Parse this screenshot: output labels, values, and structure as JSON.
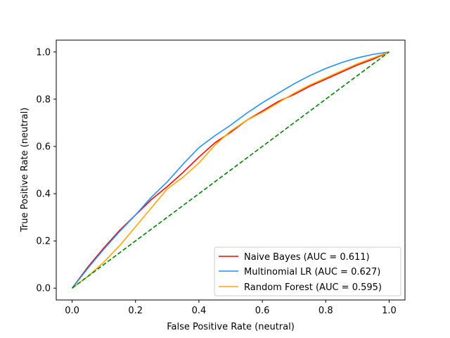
{
  "chart_data": {
    "type": "line",
    "title": "",
    "xlabel": "False Positive Rate (neutral)",
    "ylabel": "True Positive Rate (neutral)",
    "xlim": [
      -0.05,
      1.05
    ],
    "ylim": [
      -0.05,
      1.05
    ],
    "xticks": [
      "0.0",
      "0.2",
      "0.4",
      "0.6",
      "0.8",
      "1.0"
    ],
    "yticks": [
      "0.0",
      "0.2",
      "0.4",
      "0.6",
      "0.8",
      "1.0"
    ],
    "grid": false,
    "legend_position": "lower-right",
    "series": [
      {
        "name": "Naive Bayes (AUC =  0.611)",
        "color": "#ff0000",
        "x": [
          0,
          0.05,
          0.1,
          0.15,
          0.2,
          0.25,
          0.3,
          0.35,
          0.4,
          0.45,
          0.5,
          0.55,
          0.6,
          0.65,
          0.7,
          0.75,
          0.8,
          0.85,
          0.9,
          0.95,
          1.0
        ],
        "y": [
          0,
          0.09,
          0.17,
          0.245,
          0.31,
          0.375,
          0.43,
          0.49,
          0.555,
          0.615,
          0.66,
          0.71,
          0.75,
          0.79,
          0.82,
          0.855,
          0.885,
          0.915,
          0.945,
          0.97,
          1.0
        ]
      },
      {
        "name": "Multinomial LR (AUC =  0.627)",
        "color": "#1e90ff",
        "x": [
          0,
          0.05,
          0.1,
          0.15,
          0.2,
          0.25,
          0.3,
          0.35,
          0.4,
          0.45,
          0.5,
          0.55,
          0.6,
          0.65,
          0.7,
          0.75,
          0.8,
          0.85,
          0.9,
          0.95,
          1.0
        ],
        "y": [
          0,
          0.085,
          0.165,
          0.24,
          0.31,
          0.385,
          0.45,
          0.525,
          0.595,
          0.645,
          0.69,
          0.74,
          0.785,
          0.825,
          0.865,
          0.9,
          0.93,
          0.955,
          0.975,
          0.99,
          1.0
        ]
      },
      {
        "name": "Random Forest (AUC =  0.595)",
        "color": "#ffa500",
        "x": [
          0,
          0.05,
          0.1,
          0.15,
          0.2,
          0.25,
          0.3,
          0.35,
          0.4,
          0.45,
          0.5,
          0.55,
          0.6,
          0.65,
          0.7,
          0.75,
          0.8,
          0.85,
          0.9,
          0.95,
          1.0
        ],
        "y": [
          0,
          0.05,
          0.11,
          0.18,
          0.26,
          0.34,
          0.42,
          0.47,
          0.53,
          0.605,
          0.665,
          0.71,
          0.745,
          0.785,
          0.825,
          0.86,
          0.89,
          0.92,
          0.95,
          0.975,
          1.0
        ]
      },
      {
        "name": "",
        "color": "#008000",
        "dashed": true,
        "x": [
          0,
          1
        ],
        "y": [
          0,
          1
        ]
      }
    ]
  }
}
